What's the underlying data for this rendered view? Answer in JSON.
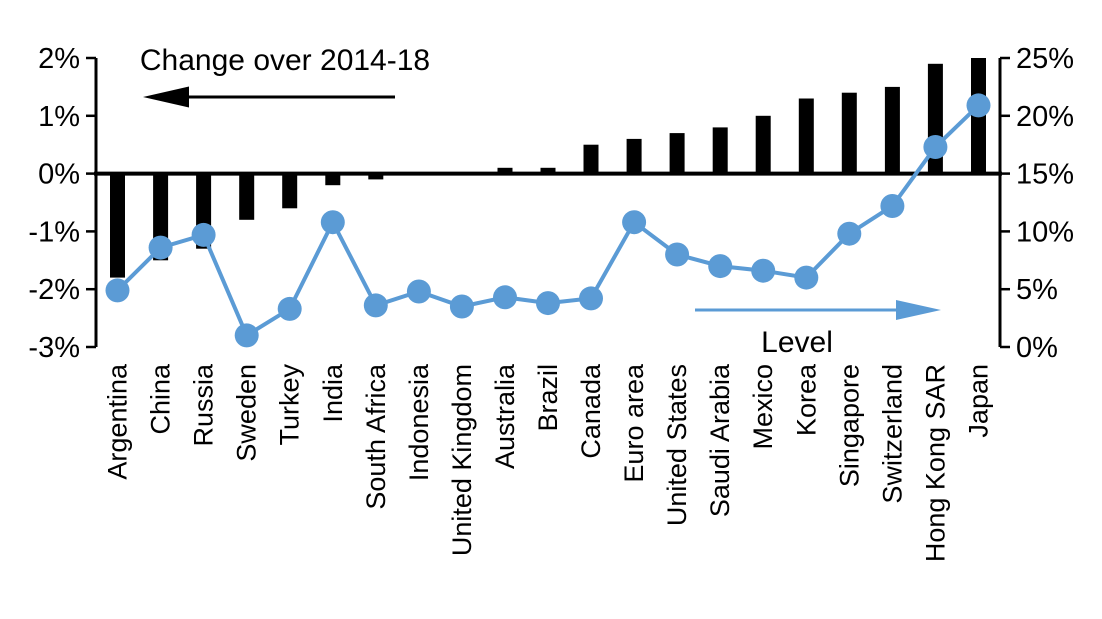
{
  "chart_data": {
    "type": "bar",
    "subtype": "combo-bar-line-dual-axis",
    "title": "",
    "categories": [
      "Argentina",
      "China",
      "Russia",
      "Sweden",
      "Turkey",
      "India",
      "South Africa",
      "Indonesia",
      "United Kingdom",
      "Australia",
      "Brazil",
      "Canada",
      "Euro area",
      "United States",
      "Saudi Arabia",
      "Mexico",
      "Korea",
      "Singapore",
      "Switzerland",
      "Hong Kong SAR",
      "Japan"
    ],
    "series": [
      {
        "name": "Change over 2014-18",
        "type": "bar",
        "axis": "left",
        "color": "#000000",
        "values": [
          -1.8,
          -1.5,
          -1.3,
          -0.8,
          -0.6,
          -0.2,
          -0.1,
          0,
          0,
          0.1,
          0.1,
          0.5,
          0.6,
          0.7,
          0.8,
          1.0,
          1.3,
          1.4,
          1.5,
          1.9,
          2.0
        ]
      },
      {
        "name": "Level",
        "type": "line",
        "axis": "right",
        "color": "#5B9BD5",
        "values": [
          4.9,
          8.6,
          9.7,
          1.0,
          3.3,
          10.8,
          3.6,
          4.8,
          3.5,
          4.3,
          3.8,
          4.2,
          10.8,
          8.0,
          7.0,
          6.6,
          6.0,
          9.8,
          12.2,
          17.3,
          20.9
        ]
      }
    ],
    "left_axis": {
      "min": -3,
      "max": 2,
      "tick_values": [
        2,
        1,
        0,
        -1,
        -2,
        -3
      ],
      "tick_labels": [
        "2%",
        "1%",
        "0%",
        "-1%",
        "-2%",
        "-3%"
      ]
    },
    "right_axis": {
      "min": 0,
      "max": 25,
      "tick_values": [
        25,
        20,
        15,
        10,
        5,
        0
      ],
      "tick_labels": [
        "25%",
        "20%",
        "15%",
        "10%",
        "5%",
        "0%"
      ]
    },
    "annotations": {
      "bar_series_label": "Change over 2014-18",
      "line_series_label": "Level"
    },
    "colors": {
      "bar": "#000000",
      "line": "#5B9BD5",
      "axis": "#000000",
      "background": "#FFFFFF"
    },
    "legend": "none",
    "grid": false
  }
}
